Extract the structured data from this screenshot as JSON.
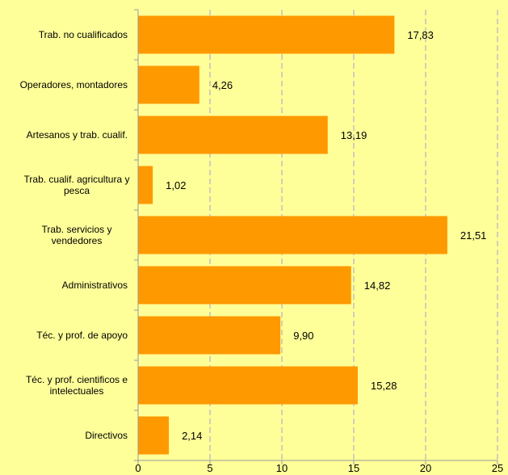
{
  "chart_data": {
    "type": "bar",
    "orientation": "horizontal",
    "categories": [
      "Trab. no cualificados",
      "Operadores, montadores",
      "Artesanos y trab. cualif.",
      "Trab. cualif. agricultura y pesca",
      "Trab. servicios y vendedores",
      "Administrativos",
      "Téc. y prof. de apoyo",
      "Téc. y prof. cientificos e intelectuales",
      "Directivos"
    ],
    "category_lines": [
      [
        "Trab. no cualificados"
      ],
      [
        "Operadores, montadores"
      ],
      [
        "Artesanos y trab. cualif."
      ],
      [
        "Trab. cualif. agricultura y",
        "pesca"
      ],
      [
        "Trab. servicios y",
        "vendedores"
      ],
      [
        "Administrativos"
      ],
      [
        "Téc. y prof. de apoyo"
      ],
      [
        "Téc. y prof. cientificos e",
        "intelectuales"
      ],
      [
        "Directivos"
      ]
    ],
    "values": [
      17.83,
      4.26,
      13.19,
      1.02,
      21.51,
      14.82,
      9.9,
      15.28,
      2.14
    ],
    "value_labels": [
      "17,83",
      "4,26",
      "13,19",
      "1,02",
      "21,51",
      "14,82",
      "9,90",
      "15,28",
      "2,14"
    ],
    "xlim": [
      0,
      25
    ],
    "x_ticks": [
      0,
      5,
      10,
      15,
      20,
      25
    ],
    "x_tick_labels": [
      "0",
      "5",
      "10",
      "15",
      "20",
      "25"
    ],
    "grid": true,
    "legend": false,
    "colors": {
      "bar": "#ff9900",
      "background": "#ffff99",
      "grid": "#c0c0c0",
      "axis": "#9a9a9a"
    }
  }
}
